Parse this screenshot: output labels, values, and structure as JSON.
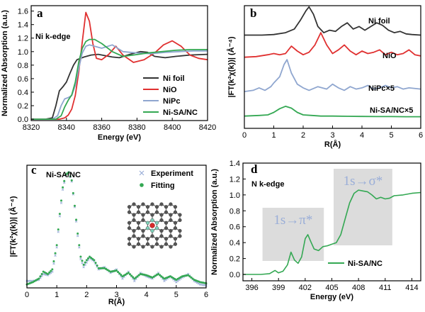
{
  "chart_data": [
    {
      "id": "a",
      "type": "line",
      "panel_label": "a",
      "annotation": "Ni k-edge",
      "xlabel": "Energy (eV)",
      "ylabel": "Normalized Absorption (a.u.)",
      "xlim": [
        8320,
        8420
      ],
      "ylim": [
        -0.02,
        1.68
      ],
      "xticks": [
        8320,
        8340,
        8360,
        8380,
        8400,
        8420
      ],
      "yticks": [
        0.0,
        0.2,
        0.4,
        0.6,
        0.8,
        1.0,
        1.2,
        1.4,
        1.6
      ],
      "ytick_labels": [
        "0.0",
        "0.2",
        "0.4",
        "0.6",
        "0.8",
        "1.0",
        "1.2",
        "1.4",
        "1.6"
      ],
      "legend_position": "bottom-right",
      "series": [
        {
          "name": "Ni foil",
          "color": "#333333",
          "x": [
            8320,
            8328,
            8332,
            8334,
            8336,
            8338,
            8340,
            8342,
            8344,
            8346,
            8350,
            8354,
            8358,
            8362,
            8366,
            8370,
            8376,
            8382,
            8386,
            8390,
            8396,
            8402,
            8410,
            8420
          ],
          "y": [
            0.0,
            0.0,
            0.02,
            0.2,
            0.42,
            0.48,
            0.55,
            0.68,
            0.8,
            0.88,
            0.92,
            0.95,
            0.96,
            0.94,
            0.92,
            0.91,
            0.96,
            1.0,
            0.99,
            0.93,
            0.91,
            0.93,
            0.95,
            0.96
          ]
        },
        {
          "name": "NiO",
          "color": "#e03030",
          "x": [
            8320,
            8336,
            8339,
            8341,
            8343,
            8345,
            8347,
            8349,
            8351,
            8353,
            8355,
            8357,
            8360,
            8364,
            8368,
            8372,
            8378,
            8384,
            8390,
            8395,
            8400,
            8405,
            8410,
            8415,
            8420
          ],
          "y": [
            0.0,
            0.0,
            0.02,
            0.06,
            0.15,
            0.35,
            0.7,
            1.15,
            1.58,
            1.45,
            1.12,
            0.9,
            0.88,
            0.96,
            1.08,
            0.95,
            0.84,
            0.88,
            0.98,
            1.1,
            1.16,
            1.08,
            0.95,
            0.9,
            0.88
          ]
        },
        {
          "name": "NiPc",
          "color": "#8fa6cf",
          "x": [
            8320,
            8332,
            8335,
            8337,
            8339,
            8341,
            8343,
            8345,
            8347,
            8349,
            8351,
            8353,
            8356,
            8360,
            8366,
            8372,
            8380,
            8388,
            8396,
            8404,
            8412,
            8420
          ],
          "y": [
            0.0,
            0.0,
            0.05,
            0.2,
            0.3,
            0.32,
            0.35,
            0.5,
            0.75,
            0.98,
            1.08,
            1.1,
            1.08,
            1.05,
            1.1,
            1.0,
            0.98,
            0.97,
            0.99,
            1.0,
            1.01,
            1.01
          ]
        },
        {
          "name": "Ni-SA/NC",
          "color": "#34a853",
          "x": [
            8320,
            8334,
            8337,
            8339,
            8341,
            8343,
            8345,
            8347,
            8349,
            8351,
            8353,
            8356,
            8360,
            8366,
            8372,
            8378,
            8386,
            8394,
            8402,
            8410,
            8420
          ],
          "y": [
            0.0,
            0.0,
            0.05,
            0.18,
            0.28,
            0.36,
            0.55,
            0.85,
            1.05,
            1.15,
            1.18,
            1.18,
            1.12,
            1.0,
            0.93,
            0.95,
            0.98,
            1.0,
            1.02,
            1.03,
            1.03
          ]
        }
      ]
    },
    {
      "id": "b",
      "type": "line",
      "panel_label": "b",
      "xlabel": "R(Å)",
      "ylabel": "|FT(k²χ(k))| (Å⁻⁴)",
      "xlim": [
        0,
        6
      ],
      "ylim": [
        0,
        1
      ],
      "xticks": [
        0,
        1,
        2,
        3,
        4,
        5,
        6
      ],
      "series": [
        {
          "name": "Ni foil",
          "label": "Ni foil",
          "color": "#333333",
          "x": [
            0,
            0.6,
            1.0,
            1.4,
            1.7,
            1.9,
            2.1,
            2.2,
            2.35,
            2.5,
            2.7,
            2.9,
            3.1,
            3.3,
            3.5,
            3.7,
            3.9,
            4.1,
            4.3,
            4.5,
            4.7,
            4.9,
            5.1,
            5.3,
            5.5,
            5.7,
            6
          ],
          "y": [
            0.76,
            0.76,
            0.765,
            0.78,
            0.81,
            0.88,
            0.96,
            0.99,
            0.93,
            0.83,
            0.78,
            0.8,
            0.79,
            0.83,
            0.86,
            0.81,
            0.83,
            0.8,
            0.83,
            0.86,
            0.84,
            0.8,
            0.78,
            0.79,
            0.77,
            0.765,
            0.76
          ]
        },
        {
          "name": "NiO",
          "label": "NiO",
          "color": "#e03030",
          "x": [
            0,
            0.4,
            0.8,
            1.0,
            1.2,
            1.4,
            1.6,
            1.8,
            2.0,
            2.2,
            2.4,
            2.6,
            2.8,
            3.0,
            3.2,
            3.4,
            3.6,
            3.8,
            4.0,
            4.2,
            4.4,
            4.6,
            4.8,
            5.0,
            5.2,
            5.4,
            5.6,
            5.8,
            6
          ],
          "y": [
            0.58,
            0.585,
            0.6,
            0.61,
            0.6,
            0.61,
            0.67,
            0.63,
            0.6,
            0.62,
            0.68,
            0.78,
            0.68,
            0.61,
            0.64,
            0.68,
            0.63,
            0.6,
            0.63,
            0.61,
            0.62,
            0.64,
            0.6,
            0.62,
            0.6,
            0.61,
            0.64,
            0.6,
            0.59
          ]
        },
        {
          "name": "NiPc×5",
          "label": "NiPc×5",
          "color": "#8fa6cf",
          "x": [
            0,
            0.3,
            0.5,
            0.7,
            0.9,
            1.0,
            1.2,
            1.35,
            1.45,
            1.6,
            1.8,
            2.0,
            2.2,
            2.5,
            2.8,
            3.0,
            3.2,
            3.4,
            3.6,
            3.8,
            4.0,
            4.2,
            4.4,
            4.6,
            4.8,
            5.0,
            5.2,
            5.4,
            5.6,
            6
          ],
          "y": [
            0.3,
            0.31,
            0.33,
            0.31,
            0.34,
            0.37,
            0.42,
            0.52,
            0.56,
            0.45,
            0.36,
            0.33,
            0.31,
            0.34,
            0.32,
            0.36,
            0.33,
            0.31,
            0.34,
            0.32,
            0.33,
            0.35,
            0.32,
            0.33,
            0.35,
            0.33,
            0.34,
            0.32,
            0.33,
            0.32
          ]
        },
        {
          "name": "Ni-SA/NC×5",
          "label": "Ni-SA/NC×5",
          "color": "#34a853",
          "x": [
            0,
            0.5,
            0.8,
            1.0,
            1.2,
            1.4,
            1.6,
            1.8,
            2.0,
            2.3,
            2.6,
            3.0,
            3.5,
            4.0,
            4.5,
            5.0,
            5.5,
            6
          ],
          "y": [
            0.1,
            0.105,
            0.11,
            0.13,
            0.16,
            0.18,
            0.165,
            0.13,
            0.11,
            0.105,
            0.1,
            0.1,
            0.098,
            0.097,
            0.096,
            0.096,
            0.095,
            0.095
          ]
        }
      ]
    },
    {
      "id": "c",
      "type": "scatter",
      "panel_label": "c",
      "annotation": "Ni-SA/NC",
      "xlabel": "R(Å)",
      "ylabel": "|FT(k²χ(k))| (Å⁻⁴)",
      "xlim": [
        0,
        6
      ],
      "ylim": [
        0,
        1
      ],
      "xticks": [
        0,
        1,
        2,
        3,
        4,
        5,
        6
      ],
      "legend_position": "top-right",
      "series": [
        {
          "name": "Experiment",
          "color": "#9aaed8",
          "marker": "x",
          "x": [
            0,
            0.2,
            0.4,
            0.55,
            0.7,
            0.85,
            1.0,
            1.1,
            1.2,
            1.3,
            1.4,
            1.5,
            1.6,
            1.7,
            1.8,
            1.9,
            2.0,
            2.1,
            2.25,
            2.4,
            2.6,
            2.8,
            3.0,
            3.2,
            3.4,
            3.6,
            3.8,
            4.0,
            4.2,
            4.4,
            4.6,
            4.8,
            5.0,
            5.2,
            5.4,
            5.6,
            5.8,
            6
          ],
          "y": [
            0.06,
            0.06,
            0.07,
            0.12,
            0.11,
            0.14,
            0.35,
            0.62,
            0.85,
            0.97,
            1.0,
            0.92,
            0.7,
            0.45,
            0.25,
            0.18,
            0.22,
            0.26,
            0.23,
            0.16,
            0.18,
            0.13,
            0.16,
            0.08,
            0.14,
            0.06,
            0.13,
            0.1,
            0.08,
            0.13,
            0.06,
            0.1,
            0.05,
            0.09,
            0.12,
            0.06,
            0.03,
            0.02
          ]
        },
        {
          "name": "Fitting",
          "color": "#34a853",
          "marker": "dot",
          "x": [
            0,
            0.2,
            0.4,
            0.55,
            0.7,
            0.85,
            1.0,
            1.1,
            1.2,
            1.3,
            1.4,
            1.5,
            1.6,
            1.7,
            1.8,
            1.9,
            2.0,
            2.1,
            2.25,
            2.4,
            2.6,
            2.8,
            3.0,
            3.2,
            3.4,
            3.6,
            3.8,
            4.0,
            4.2,
            4.4,
            4.6,
            4.8,
            5.0,
            5.2,
            5.4,
            5.6,
            5.8,
            6
          ],
          "y": [
            0.03,
            0.05,
            0.08,
            0.14,
            0.12,
            0.16,
            0.37,
            0.64,
            0.87,
            0.98,
            1.0,
            0.93,
            0.71,
            0.47,
            0.27,
            0.2,
            0.24,
            0.27,
            0.24,
            0.17,
            0.17,
            0.14,
            0.15,
            0.1,
            0.13,
            0.08,
            0.12,
            0.11,
            0.09,
            0.12,
            0.08,
            0.1,
            0.07,
            0.1,
            0.11,
            0.07,
            0.05,
            0.04
          ]
        }
      ]
    },
    {
      "id": "d",
      "type": "line",
      "panel_label": "d",
      "annotation": "N k-edge",
      "xlabel": "Energy (eV)",
      "ylabel": "Normalized Absorption (a.u.)",
      "xlim": [
        395,
        415
      ],
      "ylim": [
        -0.08,
        1.4
      ],
      "xticks": [
        396,
        399,
        402,
        405,
        408,
        411,
        414
      ],
      "yticks": [
        0.0,
        0.2,
        0.4,
        0.6,
        0.8,
        1.0,
        1.2,
        1.4
      ],
      "ytick_labels": [
        "0.0",
        "0.2",
        "0.4",
        "0.6",
        "0.8",
        "1.0",
        "1.2",
        "1.4"
      ],
      "legend_position": "bottom-right",
      "transitions": [
        {
          "label": "1s→π*",
          "x_range": [
            397.2,
            404.1
          ]
        },
        {
          "label": "1s→σ*",
          "x_range": [
            405.2,
            411.8
          ]
        }
      ],
      "series": [
        {
          "name": "Ni-SA/NC",
          "color": "#34a853",
          "x": [
            395,
            396,
            397,
            398,
            398.6,
            399,
            399.5,
            400,
            400.4,
            400.8,
            401.2,
            401.6,
            402,
            402.3,
            402.6,
            403,
            403.5,
            404,
            404.5,
            405,
            405.5,
            406,
            406.5,
            407,
            407.5,
            408,
            408.5,
            409,
            409.5,
            410,
            410.5,
            411,
            411.5,
            412,
            413,
            414,
            415
          ],
          "y": [
            0.0,
            0.0,
            0.0,
            0.01,
            0.05,
            0.02,
            0.04,
            0.12,
            0.28,
            0.18,
            0.14,
            0.22,
            0.45,
            0.5,
            0.42,
            0.32,
            0.3,
            0.35,
            0.36,
            0.38,
            0.4,
            0.5,
            0.7,
            0.9,
            1.02,
            1.06,
            1.05,
            1.04,
            1.0,
            0.95,
            0.97,
            0.95,
            0.96,
            0.99,
            1.0,
            1.02,
            1.03
          ]
        }
      ]
    }
  ]
}
